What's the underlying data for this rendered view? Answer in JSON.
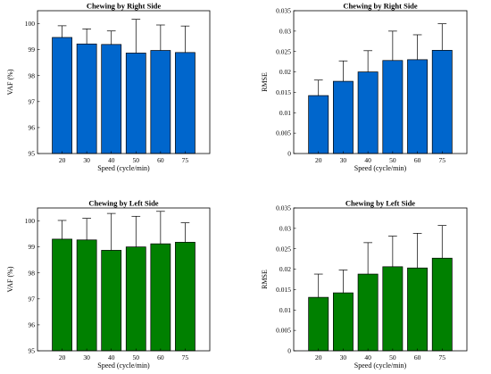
{
  "chart_data": [
    {
      "type": "bar",
      "title": "Chewing by Right Side",
      "xlabel": "Speed (cycle/min)",
      "ylabel": "VAF (%)",
      "categories": [
        "20",
        "30",
        "40",
        "50",
        "60",
        "75"
      ],
      "values": [
        99.47,
        99.22,
        99.2,
        98.87,
        98.97,
        98.89
      ],
      "error": [
        0.45,
        0.58,
        0.52,
        1.3,
        0.98,
        1.02
      ],
      "ylim": [
        95,
        100.5
      ],
      "yticks": [
        "95",
        "96",
        "97",
        "98",
        "99",
        "100"
      ],
      "bar_color": "#0066cc",
      "grid": false
    },
    {
      "type": "bar",
      "title": "Chewing by Right Side",
      "xlabel": "Speed (cycle/min)",
      "ylabel": "RMSE",
      "categories": [
        "20",
        "30",
        "40",
        "50",
        "60",
        "75"
      ],
      "values": [
        0.0142,
        0.0177,
        0.02,
        0.0228,
        0.023,
        0.0253
      ],
      "error": [
        0.0038,
        0.005,
        0.0052,
        0.0072,
        0.0061,
        0.0065
      ],
      "ylim": [
        0,
        0.035
      ],
      "yticks": [
        "0",
        "0.005",
        "0.01",
        "0.015",
        "0.02",
        "0.025",
        "0.03",
        "0.035"
      ],
      "bar_color": "#0066cc",
      "grid": false
    },
    {
      "type": "bar",
      "title": "Chewing by Left Side",
      "xlabel": "Speed (cycle/min)",
      "ylabel": "VAF (%)",
      "categories": [
        "20",
        "30",
        "40",
        "50",
        "60",
        "75"
      ],
      "values": [
        99.3,
        99.27,
        98.87,
        99.0,
        99.12,
        99.18
      ],
      "error": [
        0.72,
        0.83,
        1.42,
        1.18,
        1.25,
        0.75
      ],
      "ylim": [
        95,
        100.5
      ],
      "yticks": [
        "95",
        "96",
        "97",
        "98",
        "99",
        "100"
      ],
      "bar_color": "#008000",
      "grid": false
    },
    {
      "type": "bar",
      "title": "Chewing by Left Side",
      "xlabel": "Speed (cycle/min)",
      "ylabel": "RMSE",
      "categories": [
        "20",
        "30",
        "40",
        "50",
        "60",
        "75"
      ],
      "values": [
        0.0131,
        0.0142,
        0.0188,
        0.0206,
        0.0203,
        0.0227
      ],
      "error": [
        0.0057,
        0.0056,
        0.0077,
        0.0075,
        0.0085,
        0.008
      ],
      "ylim": [
        0,
        0.035
      ],
      "yticks": [
        "0",
        "0.005",
        "0.01",
        "0.015",
        "0.02",
        "0.025",
        "0.03",
        "0.035"
      ],
      "bar_color": "#008000",
      "grid": false
    }
  ]
}
